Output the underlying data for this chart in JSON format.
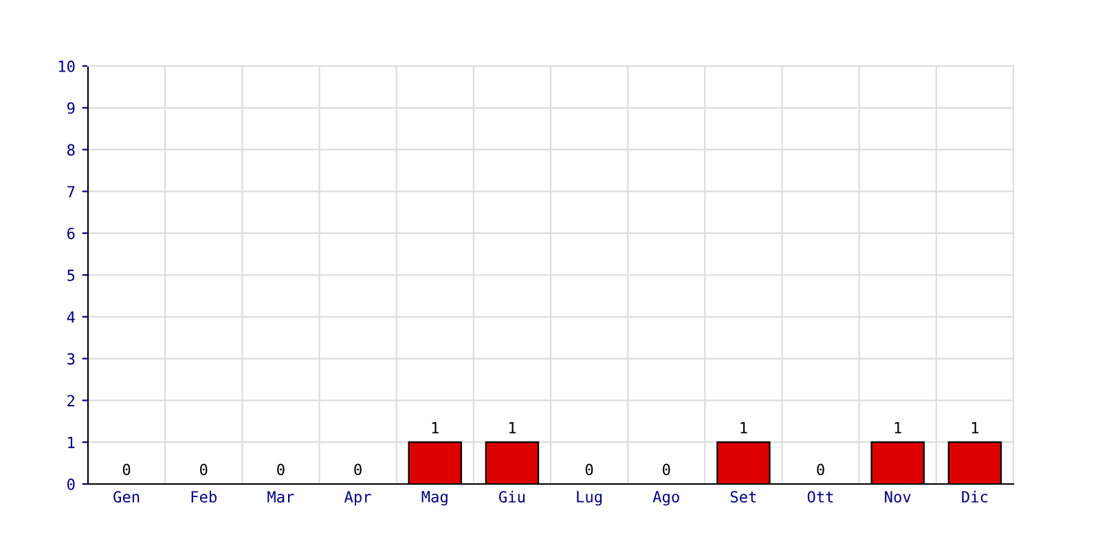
{
  "chart_data": {
    "type": "bar",
    "categories": [
      "Gen",
      "Feb",
      "Mar",
      "Apr",
      "Mag",
      "Giu",
      "Lug",
      "Ago",
      "Set",
      "Ott",
      "Nov",
      "Dic"
    ],
    "values": [
      0,
      0,
      0,
      0,
      1,
      1,
      0,
      0,
      1,
      0,
      1,
      1
    ],
    "color": "#dd0000",
    "ylim": [
      0,
      10
    ],
    "yticks": [
      0,
      1,
      2,
      3,
      4,
      5,
      6,
      7,
      8,
      9,
      10
    ],
    "grid": true,
    "data_labels": true
  }
}
